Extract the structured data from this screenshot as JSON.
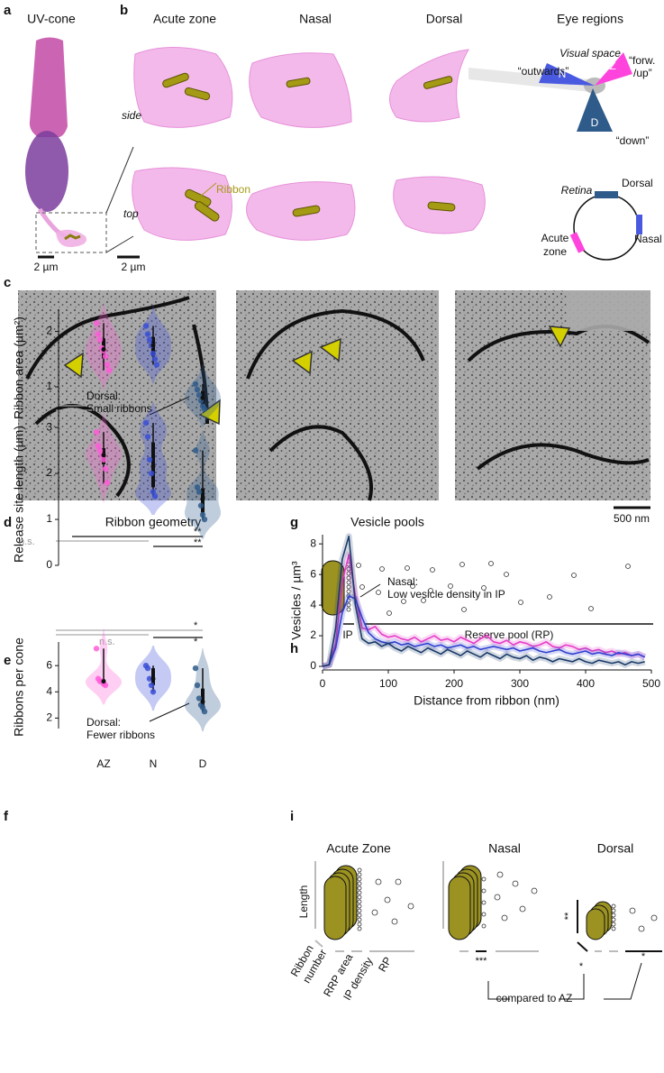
{
  "panel_labels": [
    "a",
    "b",
    "c",
    "d",
    "e",
    "f",
    "g",
    "h",
    "i"
  ],
  "panel_a": {
    "title": "UV-cone",
    "scale_bar": "2 µm"
  },
  "panel_b": {
    "columns": [
      "Acute zone",
      "Nasal",
      "Dorsal",
      "Eye regions"
    ],
    "rows": [
      "side",
      "top"
    ],
    "ribbon_label": "Ribbon",
    "scale_bar": "2 µm",
    "visual_space": {
      "title": "Visual space",
      "outwards": "“outwards”",
      "forward_up": [
        "“forw.",
        "/up”"
      ],
      "down": "“down”",
      "regions": [
        "AZ",
        "N",
        "D"
      ]
    },
    "retina": {
      "title": "Retina",
      "dorsal": "Dorsal",
      "nasal": "Nasal",
      "acute_zone": [
        "Acute",
        "zone"
      ]
    }
  },
  "panel_c": {
    "scale_bar": "500 nm"
  },
  "panel_g": {
    "title": "Vesicle pools",
    "ip": "IP",
    "rp": "Reserve pool (RP)"
  },
  "panel_i": {
    "columns": [
      "Acute Zone",
      "Nasal",
      "Dorsal"
    ],
    "length": "Length",
    "ribbon_number": [
      "Ribbon",
      "number"
    ],
    "rrp_area": "RRP area",
    "ip_density": "IP density",
    "rp": "RP",
    "significance": [
      "***",
      "**",
      "*",
      "*"
    ],
    "note": "compared to AZ"
  },
  "chart_data": [
    {
      "type": "violin",
      "title": "Ribbon geometry",
      "y_label": "Ribbon area (µm²)",
      "ylim": [
        0.3,
        2.4
      ],
      "yticks": [
        1,
        2
      ],
      "series": [
        {
          "color": "#ff5cd8",
          "values": [
            2.15,
            1.95,
            1.85,
            1.7,
            1.65,
            1.55,
            1.4,
            1.3
          ]
        },
        {
          "color": "#3a4fd6",
          "values": [
            2.1,
            1.95,
            1.85,
            1.75,
            1.6,
            1.5,
            1.4
          ]
        },
        {
          "color": "#2f5b8a",
          "values": [
            1.05,
            0.95,
            0.85,
            0.75,
            0.65,
            0.6
          ]
        }
      ],
      "significance": [
        "n.s.",
        "**",
        "**"
      ],
      "annotation": [
        "Dorsal:",
        "Small ribbons"
      ]
    },
    {
      "type": "violin",
      "y_label": "Release site length (µm)",
      "ylim": [
        0,
        3.1
      ],
      "yticks": [
        0,
        1,
        2,
        3
      ],
      "series": [
        {
          "color": "#ff5cd8",
          "values": [
            2.9,
            2.6,
            2.5,
            2.4,
            2.3,
            2.1,
            1.8
          ]
        },
        {
          "color": "#3a4fd6",
          "values": [
            3.1,
            2.8,
            2.3,
            2.0,
            1.6,
            1.5
          ]
        },
        {
          "color": "#2f5b8a",
          "values": [
            2.5,
            1.7,
            1.6,
            1.3,
            1.1,
            1.0
          ]
        }
      ],
      "significance": [
        "n.s."
      ]
    },
    {
      "type": "violin",
      "y_label": "Ribbons per cone",
      "ylim": [
        1.2,
        7.8
      ],
      "yticks": [
        2,
        4,
        6
      ],
      "categories": [
        "AZ",
        "N",
        "D"
      ],
      "series": [
        {
          "color": "#ff5cd8",
          "values": [
            7.3,
            5,
            4.8,
            4.8,
            4.6,
            4.5
          ]
        },
        {
          "color": "#3a4fd6",
          "values": [
            6,
            5.8,
            5,
            4.5,
            4
          ]
        },
        {
          "color": "#2f5b8a",
          "values": [
            5.8,
            4.5,
            3.5,
            3,
            2.8,
            2.5
          ]
        }
      ],
      "significance": [
        "*",
        "n.s.",
        "*"
      ],
      "annotation": [
        "Dorsal:",
        "Fewer ribbons"
      ]
    },
    {
      "type": "line",
      "x_label": "Distance from ribbon (nm)",
      "y_label": "Vesicles / µm³",
      "xlim": [
        0,
        500
      ],
      "xticks": [
        0,
        100,
        200,
        300,
        400,
        500
      ],
      "ylim": [
        0,
        8.6
      ],
      "yticks": [
        0,
        2,
        4,
        6,
        8
      ],
      "x": [
        0,
        10,
        20,
        30,
        40,
        50,
        60,
        70,
        80,
        90,
        100,
        110,
        120,
        130,
        140,
        150,
        160,
        170,
        180,
        190,
        200,
        210,
        220,
        230,
        240,
        250,
        260,
        270,
        280,
        290,
        300,
        310,
        320,
        330,
        340,
        350,
        360,
        370,
        380,
        390,
        400,
        410,
        420,
        430,
        440,
        450,
        460,
        470,
        480,
        490
      ],
      "series": [
        {
          "color": "#e63cc8",
          "values": [
            0,
            0.1,
            1.5,
            5.5,
            7.3,
            4.6,
            2.5,
            2.4,
            2.6,
            2.1,
            1.9,
            2.0,
            1.8,
            1.7,
            1.9,
            1.6,
            1.8,
            2.0,
            1.7,
            1.8,
            1.6,
            1.9,
            1.7,
            1.5,
            1.8,
            2.0,
            1.6,
            1.5,
            1.7,
            1.4,
            1.6,
            1.5,
            1.3,
            1.4,
            1.6,
            1.3,
            1.2,
            1.4,
            1.3,
            1.1,
            1.2,
            1.0,
            1.1,
            0.9,
            1.0,
            0.8,
            0.9,
            0.7,
            0.8,
            0.6
          ]
        },
        {
          "color": "#3040d0",
          "values": [
            0,
            0.1,
            1.2,
            3.5,
            4.6,
            4.4,
            3.2,
            2.2,
            1.8,
            1.6,
            1.5,
            1.6,
            1.4,
            1.5,
            1.3,
            1.4,
            1.5,
            1.3,
            1.4,
            1.2,
            1.3,
            1.4,
            1.2,
            1.3,
            1.1,
            1.2,
            1.3,
            1.2,
            1.1,
            1.2,
            1.0,
            1.1,
            1.2,
            1.0,
            0.9,
            1.0,
            1.1,
            0.9,
            0.8,
            0.9,
            1.0,
            0.8,
            0.9,
            0.8,
            0.7,
            0.9,
            0.8,
            0.7,
            0.8,
            0.6
          ]
        },
        {
          "color": "#1a3a6a",
          "values": [
            0,
            0.1,
            2.5,
            7.0,
            8.5,
            4.0,
            1.8,
            1.5,
            1.6,
            1.3,
            1.5,
            1.2,
            1.0,
            1.3,
            1.1,
            0.9,
            1.2,
            1.0,
            0.8,
            1.1,
            0.9,
            0.7,
            1.0,
            0.8,
            0.6,
            0.9,
            0.7,
            0.5,
            0.8,
            0.6,
            0.5,
            0.7,
            0.4,
            0.6,
            0.5,
            0.3,
            0.5,
            0.4,
            0.3,
            0.5,
            0.3,
            0.2,
            0.4,
            0.3,
            0.2,
            0.3,
            0.1,
            0.3,
            0.2,
            0.3
          ]
        }
      ],
      "annotation": [
        "Nasal:",
        "Low vesicle density in IP"
      ]
    }
  ]
}
